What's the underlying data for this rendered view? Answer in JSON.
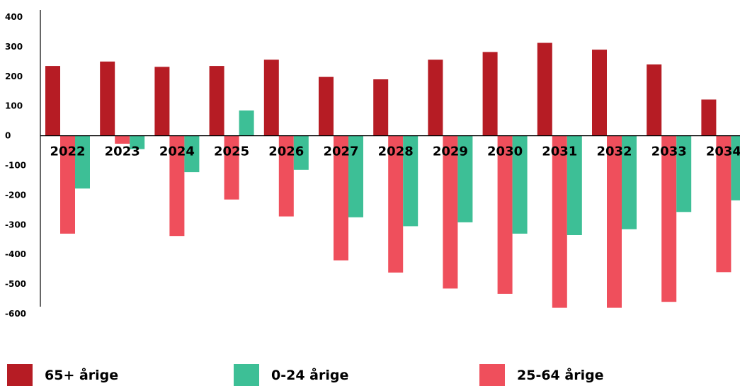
{
  "chart_data": {
    "type": "bar",
    "title": "",
    "xlabel": "",
    "ylabel": "",
    "categories": [
      "2022",
      "2023",
      "2024",
      "2025",
      "2026",
      "2027",
      "2028",
      "2029",
      "2030",
      "2031",
      "2032",
      "2033",
      "2034"
    ],
    "series": [
      {
        "name": "65+ årige",
        "color": "#b61c24",
        "values": [
          235,
          250,
          232,
          235,
          256,
          198,
          190,
          256,
          282,
          313,
          290,
          240,
          122
        ]
      },
      {
        "name": "25-64 årige",
        "color": "#ef4f5c",
        "values": [
          -330,
          -27,
          -338,
          -215,
          -272,
          -420,
          -461,
          -515,
          -533,
          -580,
          -580,
          -560,
          -460
        ]
      },
      {
        "name": "0-24 årige",
        "color": "#3dbf96",
        "values": [
          -178,
          -45,
          -123,
          85,
          -115,
          -275,
          -305,
          -292,
          -330,
          -335,
          -315,
          -257,
          -218
        ]
      }
    ],
    "ylim": [
      -600,
      400
    ],
    "yticks": [
      400,
      300,
      200,
      100,
      0,
      -100,
      -200,
      -300,
      -400,
      -500,
      -600
    ],
    "ytick_labels": [
      "400",
      "300",
      "200",
      "100",
      "0",
      "-100",
      "-200",
      "-300",
      "-400",
      "-500",
      "-600"
    ],
    "legend_position": "bottom",
    "grid": false
  },
  "legend": [
    {
      "label": "65+ årige",
      "color": "#b61c24"
    },
    {
      "label": "0-24 årige",
      "color": "#3dbf96"
    },
    {
      "label": "25-64 årige",
      "color": "#ef4f5c"
    }
  ]
}
